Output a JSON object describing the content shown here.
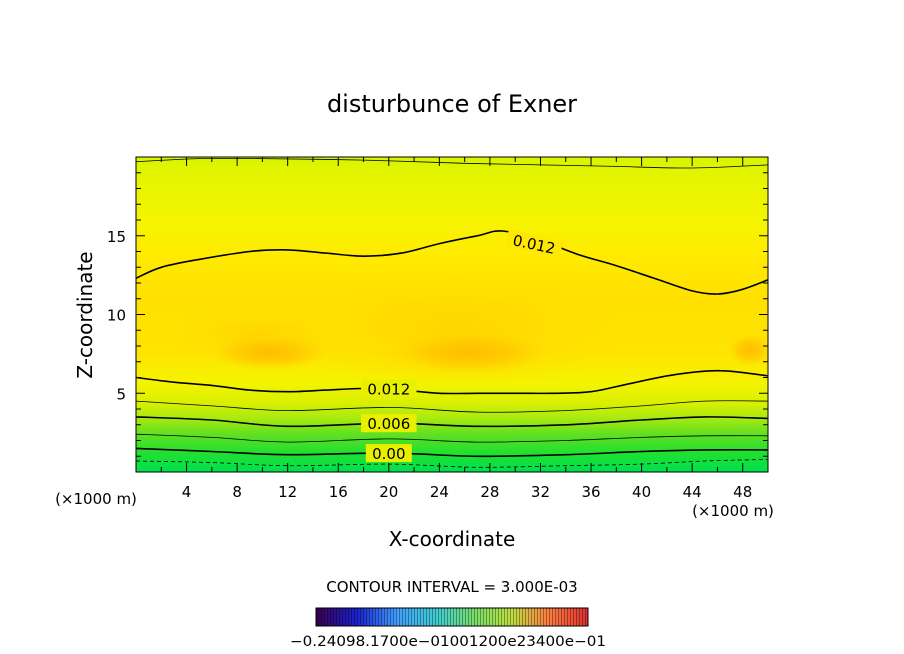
{
  "chart_data": {
    "type": "heatmap",
    "title": "disturbunce of Exner",
    "xlabel": "X-coordinate",
    "ylabel": "Z-coordinate",
    "x_unit": "(×1000 m)",
    "xlim": [
      0,
      50
    ],
    "ylim": [
      0,
      20
    ],
    "x_ticks": [
      4,
      8,
      12,
      16,
      20,
      24,
      28,
      32,
      36,
      40,
      44,
      48
    ],
    "y_ticks": [
      5,
      10,
      15
    ],
    "contour_interval_text": "CONTOUR INTERVAL = 3.000E-03",
    "contour_labels": [
      {
        "text": "0.012",
        "x": 31.5,
        "z": 14.5
      },
      {
        "text": "0.012",
        "x": 20.0,
        "z": 5.3
      },
      {
        "text": "0.006",
        "x": 20.0,
        "z": 3.1
      },
      {
        "text": "0.00",
        "x": 20.0,
        "z": 1.2
      }
    ],
    "contours": [
      {
        "level": 0.012,
        "style": "bold",
        "points": [
          [
            0,
            12.3
          ],
          [
            2,
            13.0
          ],
          [
            5,
            13.5
          ],
          [
            9,
            14.0
          ],
          [
            12,
            14.1
          ],
          [
            15,
            13.9
          ],
          [
            18,
            13.7
          ],
          [
            21,
            13.9
          ],
          [
            24,
            14.5
          ],
          [
            27,
            15.0
          ],
          [
            29,
            15.3
          ],
          [
            32,
            14.7
          ],
          [
            35,
            13.8
          ],
          [
            38,
            13.1
          ],
          [
            41,
            12.3
          ],
          [
            44,
            11.5
          ],
          [
            46,
            11.3
          ],
          [
            48,
            11.6
          ],
          [
            50,
            12.2
          ]
        ]
      },
      {
        "level": 0.012,
        "style": "bold",
        "points": [
          [
            0,
            6.0
          ],
          [
            3,
            5.7
          ],
          [
            6,
            5.5
          ],
          [
            9,
            5.2
          ],
          [
            12,
            5.1
          ],
          [
            15,
            5.2
          ],
          [
            18,
            5.3
          ],
          [
            21,
            5.2
          ],
          [
            24,
            5.0
          ],
          [
            27,
            5.0
          ],
          [
            30,
            5.0
          ],
          [
            33,
            5.0
          ],
          [
            36,
            5.1
          ],
          [
            39,
            5.6
          ],
          [
            42,
            6.1
          ],
          [
            45,
            6.4
          ],
          [
            47,
            6.4
          ],
          [
            50,
            6.1
          ]
        ]
      },
      {
        "level": 0.009,
        "style": "thin",
        "points": [
          [
            0,
            4.5
          ],
          [
            6,
            4.2
          ],
          [
            12,
            3.9
          ],
          [
            20,
            4.1
          ],
          [
            27,
            3.8
          ],
          [
            34,
            3.9
          ],
          [
            40,
            4.2
          ],
          [
            45,
            4.5
          ],
          [
            50,
            4.5
          ]
        ]
      },
      {
        "level": 0.006,
        "style": "bold",
        "points": [
          [
            0,
            3.5
          ],
          [
            6,
            3.3
          ],
          [
            12,
            2.9
          ],
          [
            20,
            3.1
          ],
          [
            27,
            2.9
          ],
          [
            34,
            3.0
          ],
          [
            40,
            3.3
          ],
          [
            45,
            3.5
          ],
          [
            50,
            3.4
          ]
        ]
      },
      {
        "level": 0.003,
        "style": "thin",
        "points": [
          [
            0,
            2.4
          ],
          [
            6,
            2.2
          ],
          [
            12,
            1.9
          ],
          [
            20,
            2.1
          ],
          [
            27,
            1.9
          ],
          [
            34,
            2.0
          ],
          [
            40,
            2.2
          ],
          [
            45,
            2.3
          ],
          [
            50,
            2.3
          ]
        ]
      },
      {
        "level": 0.0,
        "style": "bold",
        "points": [
          [
            0,
            1.5
          ],
          [
            6,
            1.3
          ],
          [
            12,
            1.1
          ],
          [
            20,
            1.2
          ],
          [
            27,
            1.0
          ],
          [
            34,
            1.1
          ],
          [
            40,
            1.3
          ],
          [
            45,
            1.4
          ],
          [
            50,
            1.4
          ]
        ]
      },
      {
        "level": -0.003,
        "style": "dashed",
        "points": [
          [
            0,
            0.7
          ],
          [
            6,
            0.6
          ],
          [
            12,
            0.4
          ],
          [
            20,
            0.5
          ],
          [
            27,
            0.3
          ],
          [
            34,
            0.4
          ],
          [
            40,
            0.5
          ],
          [
            45,
            0.7
          ],
          [
            50,
            0.8
          ]
        ]
      },
      {
        "level": 0.009,
        "style": "thin",
        "points": [
          [
            0,
            19.7
          ],
          [
            5,
            19.9
          ],
          [
            10,
            19.9
          ],
          [
            18,
            19.8
          ],
          [
            26,
            19.6
          ],
          [
            32,
            19.5
          ],
          [
            38,
            19.4
          ],
          [
            44,
            19.3
          ],
          [
            50,
            19.5
          ]
        ]
      }
    ],
    "colorbar_labels": "−0.24098.1700e−01001200e23400e−01",
    "colors": {
      "bg_yellow": "#f7f400",
      "light_yellow": "#e8f400",
      "max_orange": "#ffb800",
      "green": "#00e040"
    }
  }
}
